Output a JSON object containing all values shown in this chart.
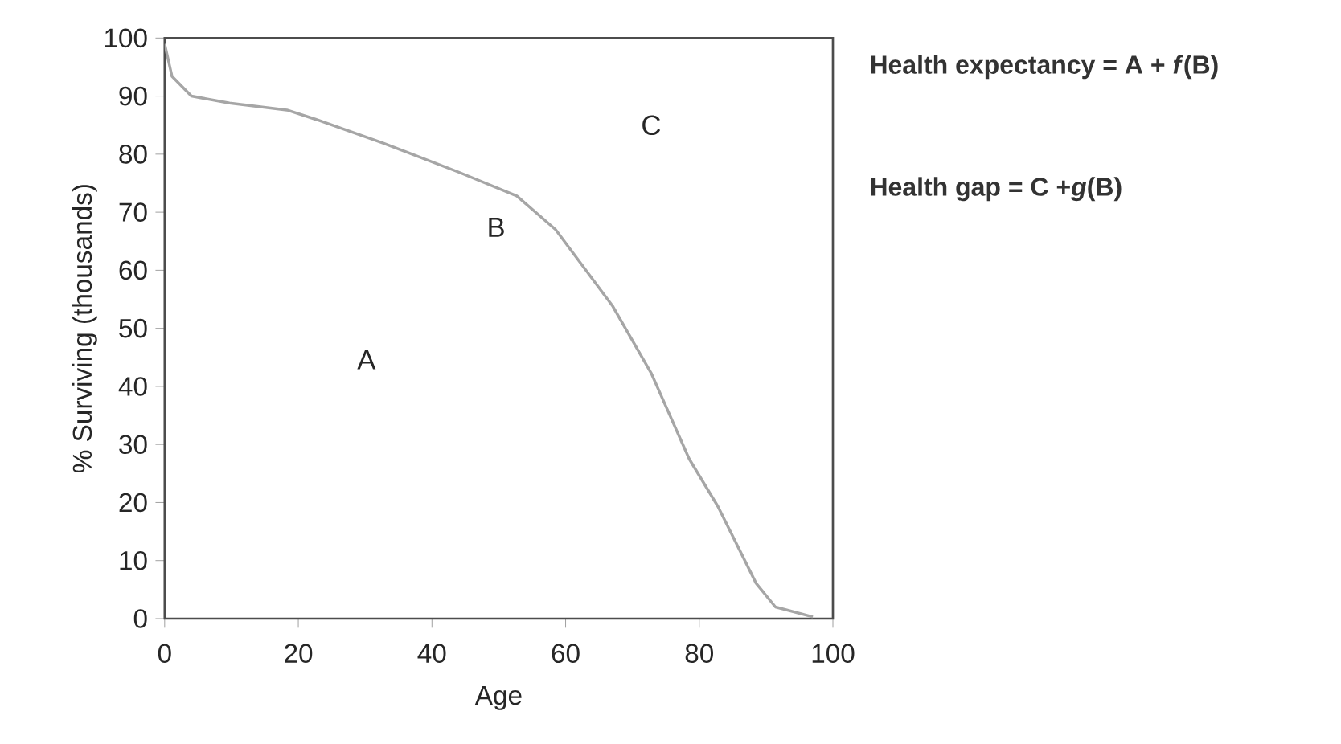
{
  "chart_data": {
    "type": "line",
    "xlabel": "Age",
    "ylabel": "% Surviving (thousands)",
    "x": [
      0,
      1.1,
      4,
      9.7,
      18.3,
      22.6,
      32.7,
      44,
      52.7,
      58.5,
      67,
      72.8,
      78.5,
      82.8,
      88.5,
      91.4,
      97
    ],
    "series": [
      {
        "color": "#a6a6a6",
        "values": [
          99,
          93.4,
          90,
          88.8,
          87.6,
          86,
          81.9,
          76.9,
          72.8,
          67,
          53.9,
          42.3,
          27.5,
          19.3,
          6.1,
          2,
          0.3
        ]
      }
    ],
    "xlim": [
      0,
      100
    ],
    "ylim": [
      0,
      100
    ],
    "xticks": [
      0,
      20,
      40,
      60,
      80,
      100
    ],
    "yticks": [
      0,
      10,
      20,
      30,
      40,
      50,
      60,
      70,
      80,
      90,
      100
    ],
    "grid": false,
    "marker": "none",
    "line_style": "solid",
    "annotations": [
      "A",
      "B",
      "C",
      "Health expectancy = A + *f*(B)",
      "Health gap = C +*g*(B)"
    ]
  }
}
